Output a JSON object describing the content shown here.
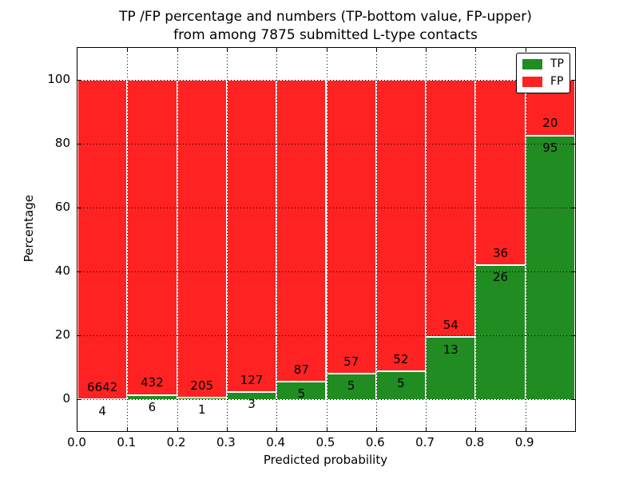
{
  "title": {
    "line1": "TP /FP percentage and numbers (TP-bottom value, FP-upper)",
    "line2": "from among 7875 submitted L-type contacts"
  },
  "axes": {
    "xlabel": "Predicted probability",
    "ylabel": "Percentage",
    "xtick_labels": [
      "0.0",
      "0.1",
      "0.2",
      "0.3",
      "0.4",
      "0.5",
      "0.6",
      "0.7",
      "0.8",
      "0.9"
    ],
    "ytick_labels": [
      "0",
      "20",
      "40",
      "60",
      "80",
      "100"
    ],
    "ytick_values": [
      0,
      20,
      40,
      60,
      80,
      100
    ]
  },
  "legend": {
    "items": [
      {
        "label": "TP",
        "color": "#218c21"
      },
      {
        "label": "FP",
        "color": "#fe2222"
      }
    ]
  },
  "colors": {
    "tp_green": "#218c21",
    "fp_red": "#fe2222",
    "grid": "#000000",
    "bar_edge": "#ffffff"
  },
  "chart_data": {
    "type": "bar",
    "stacked": true,
    "title": "TP /FP percentage and numbers (TP-bottom value, FP-upper) from among 7875 submitted L-type contacts",
    "xlabel": "Predicted probability",
    "ylabel": "Percentage",
    "total_submitted": 7875,
    "bin_starts": [
      0.0,
      0.1,
      0.2,
      0.3,
      0.4,
      0.5,
      0.6,
      0.7,
      0.8,
      0.9
    ],
    "bin_width": 0.1,
    "series": [
      {
        "name": "TP",
        "color": "#218c21",
        "counts": [
          4,
          6,
          1,
          3,
          5,
          5,
          5,
          13,
          26,
          95
        ]
      },
      {
        "name": "FP",
        "color": "#fe2222",
        "counts": [
          6642,
          432,
          205,
          127,
          87,
          57,
          52,
          54,
          36,
          20
        ]
      }
    ],
    "percent_tp": [
      0.06,
      1.37,
      0.49,
      2.31,
      5.43,
      8.06,
      8.77,
      19.4,
      41.94,
      82.61
    ],
    "percent_fp": [
      99.94,
      98.63,
      99.51,
      97.69,
      94.57,
      91.94,
      91.23,
      80.6,
      58.06,
      17.39
    ],
    "xlim": [
      0.0,
      1.0
    ],
    "ylim": [
      -10,
      110
    ],
    "yticks": [
      0,
      20,
      40,
      60,
      80,
      100
    ],
    "xticks": [
      0.0,
      0.1,
      0.2,
      0.3,
      0.4,
      0.5,
      0.6,
      0.7,
      0.8,
      0.9
    ],
    "grid": "dotted, on",
    "legend_position": "upper right",
    "bar_label_convention": "TP count below segment top, FP count above segment top"
  }
}
